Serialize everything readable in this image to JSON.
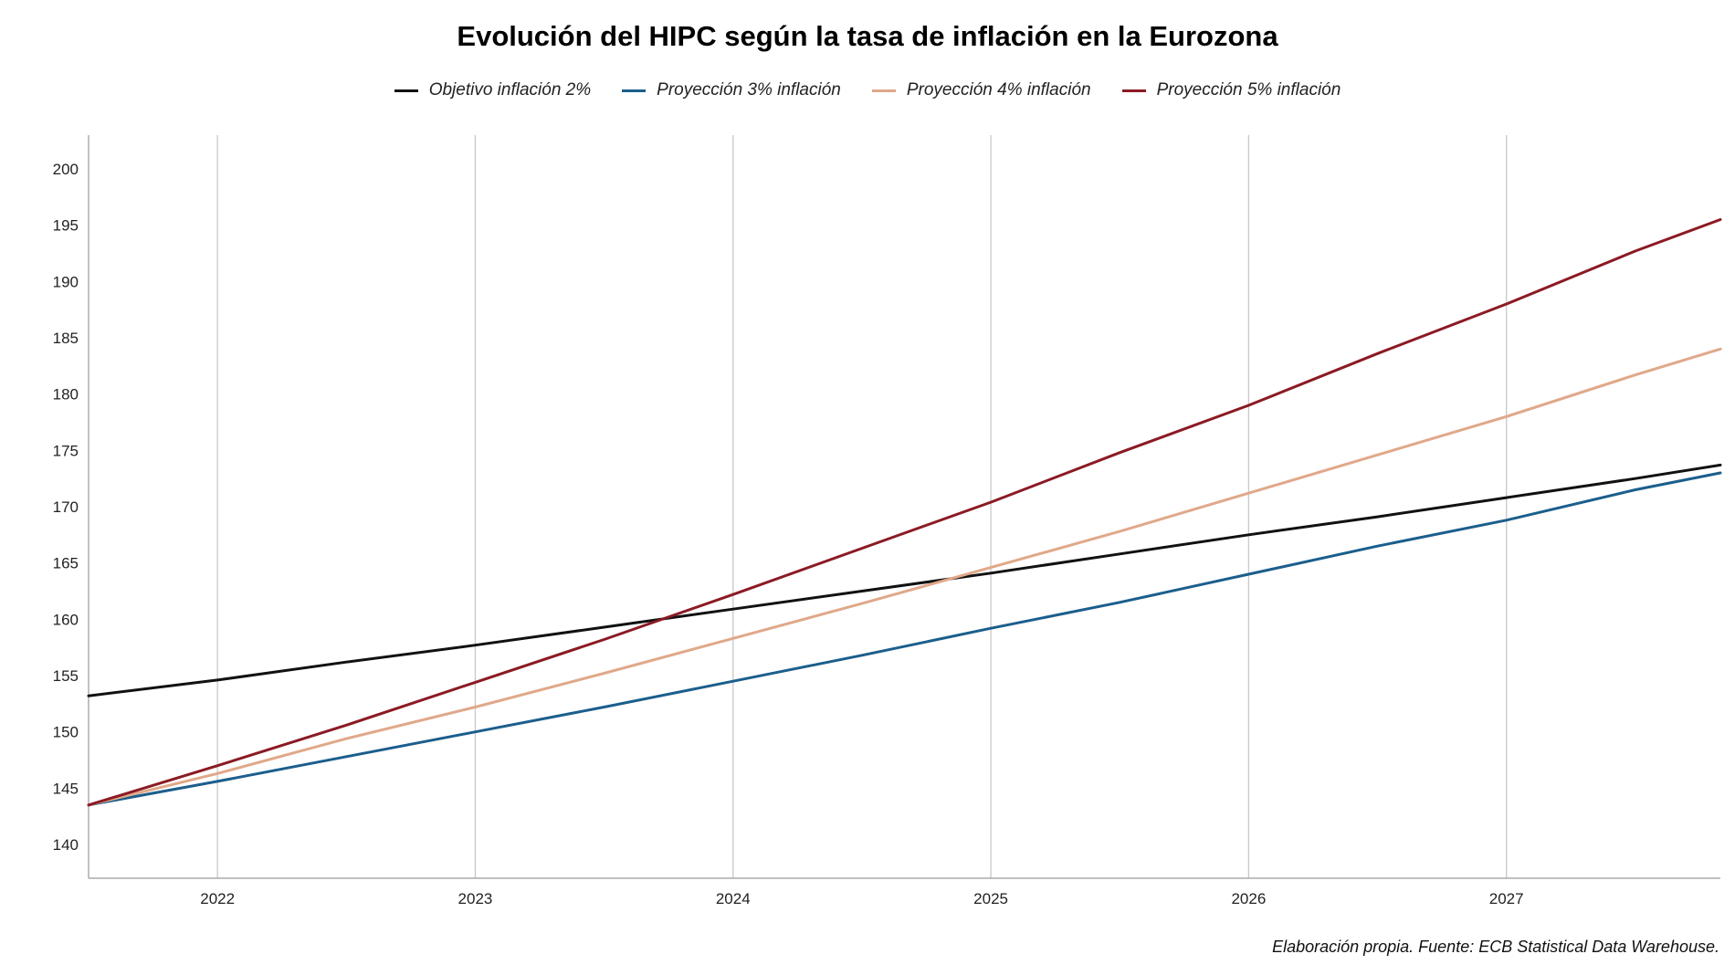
{
  "chart_data": {
    "type": "line",
    "title": "Evolución del HIPC según la tasa de inflación en la Eurozona",
    "xlabel": "",
    "ylabel": "",
    "xlim": [
      2021.5,
      2027.83
    ],
    "ylim": [
      137,
      203
    ],
    "x_ticks": [
      2022,
      2023,
      2024,
      2025,
      2026,
      2027
    ],
    "x_tick_labels": [
      "2022",
      "2023",
      "2024",
      "2025",
      "2026",
      "2027"
    ],
    "y_ticks": [
      140,
      145,
      150,
      155,
      160,
      165,
      170,
      175,
      180,
      185,
      190,
      195,
      200
    ],
    "y_tick_labels": [
      "140",
      "145",
      "150",
      "155",
      "160",
      "165",
      "170",
      "175",
      "180",
      "185",
      "190",
      "195",
      "200"
    ],
    "grid": "vertical major gridlines",
    "legend_position": "top",
    "x": [
      2021.5,
      2022,
      2022.5,
      2023,
      2023.5,
      2024,
      2024.5,
      2025,
      2025.5,
      2026,
      2026.5,
      2027,
      2027.5,
      2027.83
    ],
    "series": [
      {
        "name": "Objetivo inflación 2%",
        "color": "#111111",
        "values": [
          153.2,
          154.6,
          156.2,
          157.7,
          159.3,
          160.9,
          162.5,
          164.1,
          165.8,
          167.5,
          169.1,
          170.8,
          172.5,
          173.7
        ]
      },
      {
        "name": "Proyección 3% inflación",
        "color": "#1b5e8c",
        "values": [
          143.5,
          145.6,
          147.8,
          150.0,
          152.2,
          154.5,
          156.8,
          159.2,
          161.5,
          164.0,
          166.5,
          168.8,
          171.5,
          173.0
        ]
      },
      {
        "name": "Proyección 4% inflación",
        "color": "#e0a88a",
        "values": [
          143.5,
          146.3,
          149.4,
          152.2,
          155.2,
          158.3,
          161.4,
          164.6,
          167.8,
          171.2,
          174.6,
          178.0,
          181.7,
          184.0
        ]
      },
      {
        "name": "Proyección 5% inflación",
        "color": "#8b1a24",
        "values": [
          143.5,
          147.0,
          150.6,
          154.4,
          158.2,
          162.2,
          166.3,
          170.4,
          174.8,
          179.0,
          183.6,
          188.0,
          192.7,
          195.5
        ]
      }
    ]
  },
  "caption": "Elaboración propia. Fuente: ECB Statistical Data Warehouse."
}
